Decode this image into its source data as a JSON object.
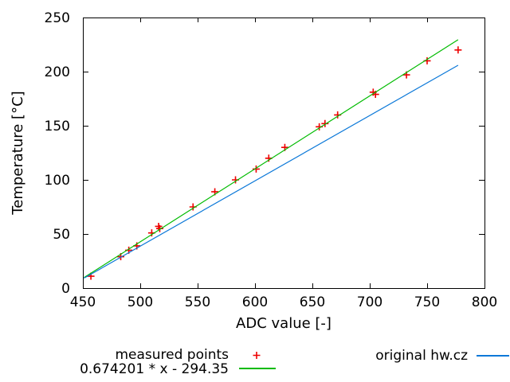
{
  "window": {
    "background": "#ffffff",
    "border_color": "#000000",
    "tick_label_color": "#000000"
  },
  "chart_data": {
    "type": "scatter",
    "title": "",
    "xlabel": "ADC value [-]",
    "ylabel": "Temperature [°C]",
    "xlim": [
      450,
      800
    ],
    "ylim": [
      0,
      250
    ],
    "x_ticks": [
      450,
      500,
      550,
      600,
      650,
      700,
      750,
      800
    ],
    "y_ticks": [
      0,
      50,
      100,
      150,
      200,
      250
    ],
    "grid": false,
    "legend_position": "below",
    "series": [
      {
        "name": "measured points",
        "type": "points",
        "marker": "plus",
        "color": "#ee0000",
        "points": [
          [
            457,
            11
          ],
          [
            483,
            29
          ],
          [
            490,
            35
          ],
          [
            497,
            39
          ],
          [
            510,
            51
          ],
          [
            516,
            57
          ],
          [
            517,
            55
          ],
          [
            546,
            75
          ],
          [
            565,
            89
          ],
          [
            583,
            100
          ],
          [
            601,
            110
          ],
          [
            612,
            120
          ],
          [
            626,
            130
          ],
          [
            656,
            149
          ],
          [
            661,
            152
          ],
          [
            672,
            160
          ],
          [
            703,
            181
          ],
          [
            705,
            179
          ],
          [
            732,
            197
          ],
          [
            750,
            210
          ],
          [
            777,
            220
          ]
        ]
      },
      {
        "name": "0.674201 * x - 294.35",
        "type": "line",
        "color": "#00bb00",
        "slope": 0.674201,
        "intercept": -294.35,
        "x_start": 451,
        "x_end": 777
      },
      {
        "name": "original hw.cz",
        "type": "line",
        "color": "#0b78d8",
        "points": [
          [
            451,
            9.2
          ],
          [
            777,
            205.9
          ]
        ]
      }
    ]
  }
}
